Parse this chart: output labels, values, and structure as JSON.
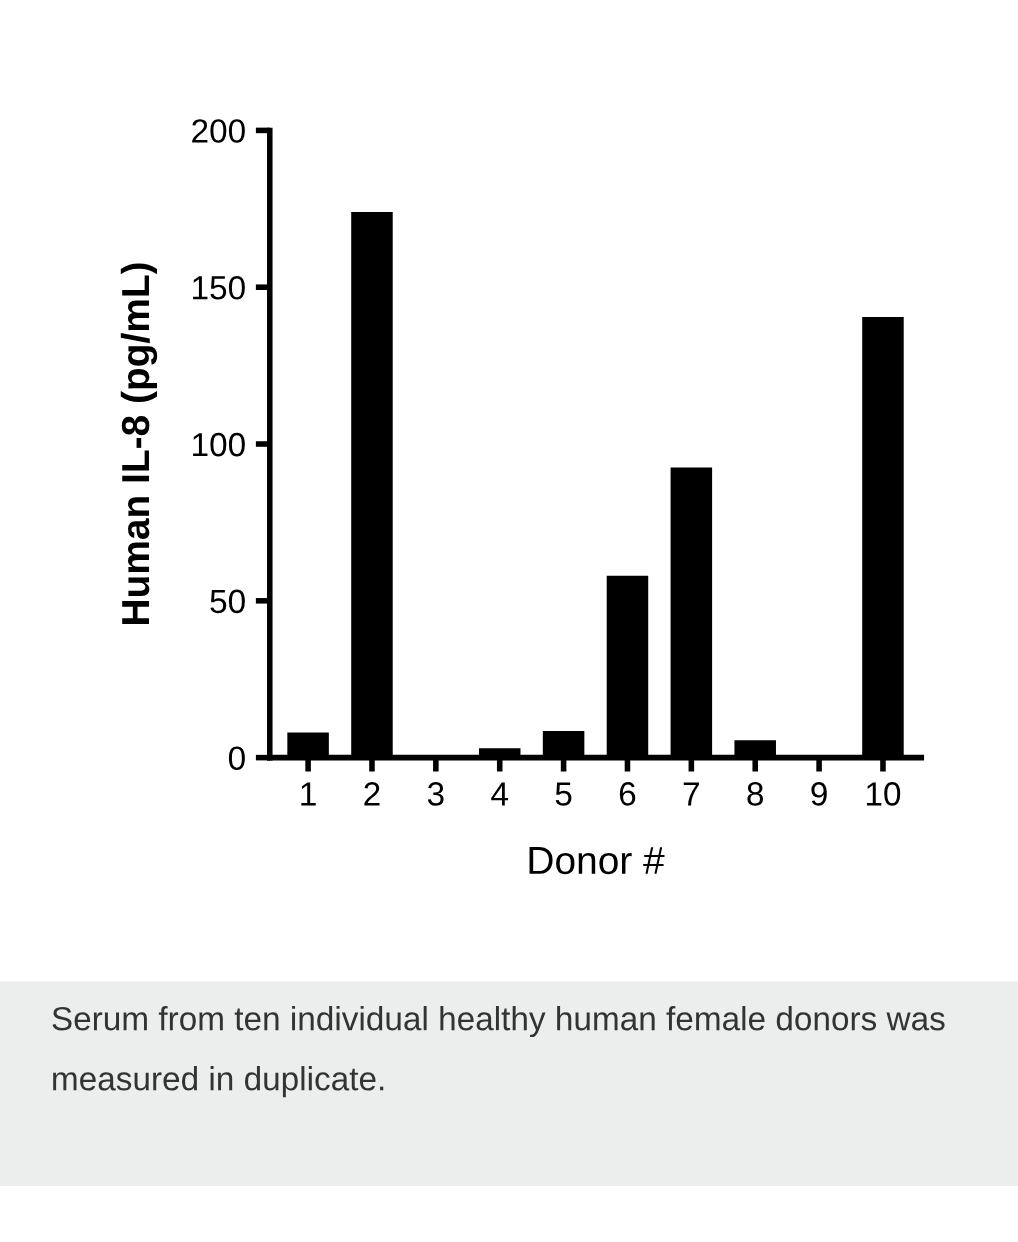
{
  "chart_data": {
    "type": "bar",
    "xlabel": "Donor #",
    "ylabel": "Human IL-8 (pg/mL)",
    "categories": [
      "1",
      "2",
      "3",
      "4",
      "5",
      "6",
      "7",
      "8",
      "9",
      "10"
    ],
    "values": [
      8,
      174,
      0,
      3,
      8.5,
      58,
      92.5,
      5.5,
      0,
      140.5
    ],
    "color": "#000000",
    "ylim": [
      0,
      200
    ],
    "yticks": [
      0,
      50,
      100,
      150,
      200
    ],
    "grid": false,
    "annotations": [
      "Serum from ten individual healthy human female donors was measured in duplicate."
    ]
  }
}
